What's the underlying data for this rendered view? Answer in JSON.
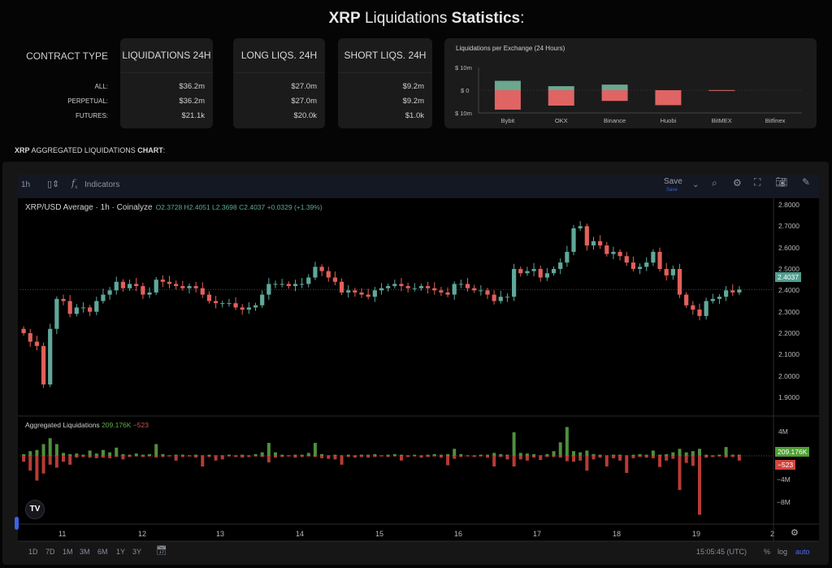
{
  "title": {
    "asset": "XRP",
    "middle": " Liquidations ",
    "bold": "Statistics",
    "suffix": ":"
  },
  "stats": {
    "label_header": "CONTRACT TYPE",
    "row_labels": [
      "ALL:",
      "PERPETUAL:",
      "FUTURES:"
    ],
    "columns": [
      {
        "header": "LIQUIDATIONS 24H",
        "values": [
          "$36.2m",
          "$36.2m",
          "$21.1k"
        ]
      },
      {
        "header": "LONG LIQS. 24H",
        "values": [
          "$27.0m",
          "$27.0m",
          "$20.0k"
        ]
      },
      {
        "header": "SHORT LIQS. 24H",
        "values": [
          "$9.2m",
          "$9.2m",
          "$1.0k"
        ]
      }
    ]
  },
  "section": {
    "asset": "XRP",
    "middle": " AGGREGATED LIQUIDATIONS ",
    "bold": "CHART",
    "suffix": ":"
  },
  "toolbar": {
    "interval": "1h",
    "indicators": "Indicators",
    "save": "Save",
    "save_sub": "Save"
  },
  "legend": {
    "symbol": "XRP/USD Average · 1h · Coinalyze",
    "ohlc": "O2.3728 H2.4051 L2.3698 C2.4037 +0.0329 (+1.39%)"
  },
  "liq_legend": {
    "name": "Aggregated Liquidations",
    "short_value": "209.176K",
    "long_value": "−523"
  },
  "price_axis": {
    "last": "2.4037"
  },
  "liq_axis": {
    "ticks": [
      "4M",
      "−4M",
      "−8M"
    ],
    "short_tag": "209.176K",
    "long_tag": "−523"
  },
  "x_ticks": [
    "11",
    "12",
    "13",
    "14",
    "15",
    "16",
    "17",
    "18",
    "19",
    "2"
  ],
  "bottom_bar": {
    "ranges": [
      "1D",
      "7D",
      "1M",
      "3M",
      "6M",
      "1Y",
      "3Y"
    ],
    "time": "15:05:45 (UTC)",
    "percent": "%",
    "log": "log",
    "auto": "auto"
  },
  "colors": {
    "up": "#5fa89a",
    "down": "#e0605a",
    "short_liq": "#4f8f3c",
    "long_liq": "#b63c35",
    "ex_short": "#6aa88f",
    "ex_long": "#e06464",
    "auto": "#4a6cf0"
  },
  "chart_data": [
    {
      "type": "bar",
      "title": "Liquidations per Exchange (24 Hours)",
      "categories": [
        "Bybit",
        "OKX",
        "Binance",
        "Huobi",
        "BitMEX",
        "Bitfinex"
      ],
      "y_ticks": [
        "$ 10m",
        "$ 0",
        "$ 10m"
      ],
      "ylim": [
        -10,
        10
      ],
      "series": [
        {
          "values": [
            4.2,
            1.8,
            2.5,
            0,
            0.05,
            0
          ]
        },
        {
          "values": [
            -8.7,
            -6.9,
            -4.8,
            -6.7,
            -0.05,
            0
          ]
        }
      ]
    },
    {
      "type": "candlestick",
      "title": "XRP/USD Average · 1h · Coinalyze",
      "y_ticks": [
        "2.8000",
        "2.7000",
        "2.6000",
        "2.5000",
        "2.4000",
        "2.3000",
        "2.2000",
        "2.1000",
        "2.0000",
        "1.9000"
      ],
      "ylim": [
        1.87,
        2.83
      ],
      "x_ticks": [
        "11",
        "12",
        "13",
        "14",
        "15",
        "16",
        "17",
        "18",
        "19",
        "2"
      ],
      "closes": [
        2.2,
        2.16,
        2.14,
        1.96,
        2.22,
        2.36,
        2.35,
        2.29,
        2.32,
        2.32,
        2.3,
        2.35,
        2.38,
        2.4,
        2.44,
        2.41,
        2.43,
        2.42,
        2.38,
        2.39,
        2.45,
        2.44,
        2.43,
        2.42,
        2.41,
        2.42,
        2.41,
        2.38,
        2.35,
        2.34,
        2.34,
        2.34,
        2.32,
        2.31,
        2.32,
        2.33,
        2.38,
        2.43,
        2.43,
        2.43,
        2.42,
        2.43,
        2.43,
        2.46,
        2.51,
        2.49,
        2.46,
        2.44,
        2.39,
        2.4,
        2.39,
        2.38,
        2.37,
        2.4,
        2.41,
        2.42,
        2.43,
        2.42,
        2.41,
        2.41,
        2.42,
        2.41,
        2.4,
        2.39,
        2.38,
        2.43,
        2.43,
        2.41,
        2.4,
        2.4,
        2.38,
        2.35,
        2.37,
        2.37,
        2.5,
        2.48,
        2.49,
        2.5,
        2.46,
        2.48,
        2.5,
        2.53,
        2.58,
        2.69,
        2.7,
        2.61,
        2.63,
        2.61,
        2.57,
        2.58,
        2.56,
        2.53,
        2.5,
        2.51,
        2.53,
        2.58,
        2.5,
        2.47,
        2.5,
        2.38,
        2.33,
        2.31,
        2.28,
        2.35,
        2.36,
        2.37,
        2.4,
        2.39,
        2.4037
      ]
    },
    {
      "type": "bar",
      "title": "Aggregated Liquidations",
      "unit": "M",
      "y_ticks": [
        "4M",
        "−4M",
        "−8M"
      ],
      "series": [
        {
          "name": "short",
          "values": [
            0.3,
            0.8,
            1.0,
            2.0,
            3.0,
            2.0,
            0.5,
            0.3,
            0.4,
            0.2,
            0.9,
            0.4,
            1.0,
            0.6,
            1.4,
            0.3,
            0.2,
            0.4,
            0.2,
            0.3,
            2.0,
            0.3,
            0.1,
            0.2,
            0.2,
            0.1,
            0.2,
            0.1,
            0.2,
            0.1,
            0.1,
            0.2,
            0.1,
            0.2,
            0.1,
            0.3,
            0.6,
            2.2,
            0.6,
            0.2,
            0.1,
            0.2,
            0.2,
            0.5,
            2.2,
            0.3,
            0.1,
            0.2,
            0.1,
            0.2,
            0.1,
            0.2,
            0.2,
            0.3,
            0.1,
            0.2,
            0.3,
            0.2,
            0.1,
            0.2,
            0.1,
            0.2,
            0.3,
            0.2,
            0.3,
            1.2,
            0.3,
            0.1,
            0.1,
            0.2,
            0.2,
            0.5,
            0.3,
            0.2,
            4.0,
            0.5,
            0.4,
            0.3,
            0.1,
            0.3,
            0.8,
            2.3,
            4.9,
            0.8,
            0.6,
            0.9,
            0.3,
            0.2,
            0.1,
            0.2,
            0.2,
            0.1,
            0.2,
            0.3,
            0.2,
            0.9,
            0.2,
            0.3,
            0.6,
            1.2,
            0.6,
            0.8,
            1.2,
            0.2,
            0.1,
            0.2,
            1.5,
            0.2,
            0.2
          ]
        },
        {
          "name": "long",
          "values": [
            -1.0,
            -2.5,
            -4.2,
            -3.0,
            -1.5,
            -2.0,
            -1.0,
            -1.5,
            -0.3,
            -0.2,
            -0.3,
            -0.4,
            -0.3,
            -0.4,
            -0.2,
            -0.6,
            -0.2,
            -0.1,
            -0.2,
            -0.1,
            -0.3,
            -0.2,
            -0.1,
            -0.8,
            -0.2,
            -0.1,
            -0.3,
            -1.8,
            -0.2,
            -0.8,
            -0.6,
            -0.1,
            -0.2,
            -0.3,
            -0.2,
            -0.1,
            -0.2,
            -1.1,
            -0.3,
            -0.2,
            -0.1,
            -0.3,
            -0.2,
            -0.1,
            -0.2,
            -0.4,
            -0.5,
            -0.6,
            -1.5,
            -0.2,
            -0.3,
            -0.2,
            -0.3,
            -0.2,
            -0.1,
            -0.2,
            -0.1,
            -0.8,
            -0.2,
            -0.1,
            -0.3,
            -0.2,
            -0.1,
            -0.3,
            -1.6,
            -0.5,
            -0.2,
            -0.1,
            -0.2,
            -0.1,
            -0.3,
            -1.8,
            -0.2,
            -0.6,
            -1.8,
            -0.6,
            -0.8,
            -0.3,
            -0.7,
            -0.2,
            -0.2,
            -0.3,
            -0.9,
            -1.0,
            -0.8,
            -2.5,
            -0.6,
            -0.3,
            -1.8,
            -0.4,
            -0.8,
            -2.9,
            -0.4,
            -0.2,
            -0.3,
            -0.4,
            -1.9,
            -0.8,
            -0.5,
            -5.8,
            -1.2,
            -1.7,
            -10.0,
            -0.3,
            -0.2,
            -0.1,
            -0.3,
            -0.2,
            -0.8
          ]
        }
      ]
    }
  ]
}
